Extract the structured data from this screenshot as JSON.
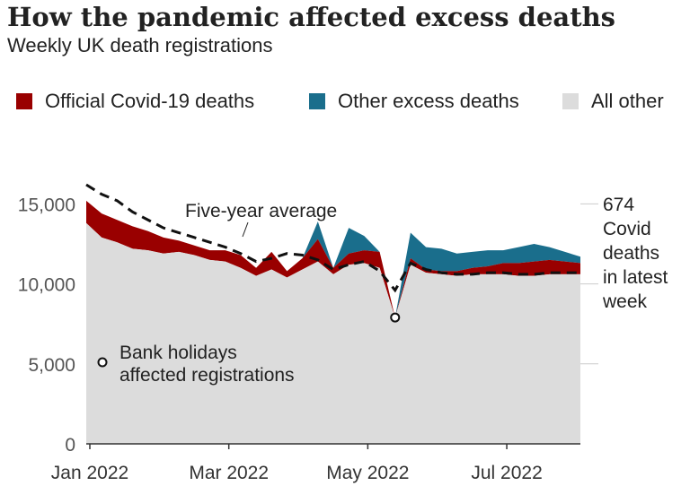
{
  "title": "How the pandemic affected excess deaths",
  "subtitle": "Weekly UK death registrations",
  "legend": [
    {
      "label": "Official Covid-19 deaths",
      "color": "#990000"
    },
    {
      "label": "Other excess deaths",
      "color": "#1a6e8c"
    },
    {
      "label": "All other",
      "color": "#dcdcdc"
    }
  ],
  "annotations": {
    "five_year_average": "Five-year average",
    "bank_holidays_line1": "Bank holidays",
    "bank_holidays_line2": "affected registrations",
    "covid_latest": [
      "674",
      "Covid",
      "deaths",
      "in latest",
      "week"
    ]
  },
  "chart_data": {
    "type": "area",
    "title": "How the pandemic affected excess deaths",
    "subtitle": "Weekly UK death registrations",
    "xlabel": "",
    "ylabel": "",
    "x_ticks": [
      "Jan 2022",
      "Mar 2022",
      "May 2022",
      "Jul 2022"
    ],
    "y_ticks": [
      0,
      5000,
      10000,
      15000
    ],
    "y_tick_labels": [
      "0",
      "5,000",
      "10,000",
      "15,000"
    ],
    "ylim": [
      0,
      17000
    ],
    "x_range_weeks": [
      0,
      32
    ],
    "tick_weeks": [
      0,
      9,
      18,
      27
    ],
    "weeks": [
      0,
      1,
      2,
      3,
      4,
      5,
      6,
      7,
      8,
      9,
      10,
      11,
      12,
      13,
      14,
      15,
      16,
      17,
      18,
      19,
      20,
      21,
      22,
      23,
      24,
      25,
      26,
      27,
      28,
      29,
      30,
      31,
      32
    ],
    "series": [
      {
        "name": "All other",
        "values": [
          13800,
          12900,
          12600,
          12200,
          12100,
          11900,
          12000,
          11800,
          11500,
          11400,
          11000,
          10500,
          10900,
          10400,
          10900,
          11400,
          10600,
          11200,
          11300,
          11000,
          7900,
          11200,
          10700,
          10600,
          10500,
          10600,
          10600,
          10600,
          10500,
          10500,
          10600,
          10600,
          10600
        ]
      },
      {
        "name": "Official Covid-19 deaths",
        "values": [
          1400,
          1500,
          1400,
          1400,
          1200,
          1000,
          700,
          600,
          600,
          700,
          800,
          500,
          1100,
          400,
          700,
          1400,
          400,
          700,
          800,
          1000,
          0,
          400,
          200,
          200,
          300,
          400,
          500,
          700,
          800,
          900,
          900,
          800,
          700
        ]
      },
      {
        "name": "Other excess deaths",
        "values": [
          0,
          0,
          0,
          0,
          0,
          0,
          0,
          0,
          0,
          0,
          0,
          0,
          0,
          0,
          0,
          1100,
          0,
          1600,
          900,
          0,
          0,
          1600,
          1400,
          1400,
          1100,
          1000,
          1000,
          800,
          1000,
          1100,
          800,
          600,
          400
        ]
      }
    ],
    "five_year_average": [
      16200,
      15600,
      15200,
      14500,
      14000,
      13500,
      13200,
      12900,
      12600,
      12300,
      11900,
      11400,
      11600,
      11900,
      11800,
      11500,
      10900,
      11200,
      11400,
      10800,
      9600,
      11300,
      10900,
      10700,
      10600,
      10600,
      10700,
      10700,
      10600,
      10600,
      10700,
      10700,
      10700
    ],
    "bank_holiday_weeks": [
      20
    ],
    "grid": false,
    "legend_position": "top"
  }
}
